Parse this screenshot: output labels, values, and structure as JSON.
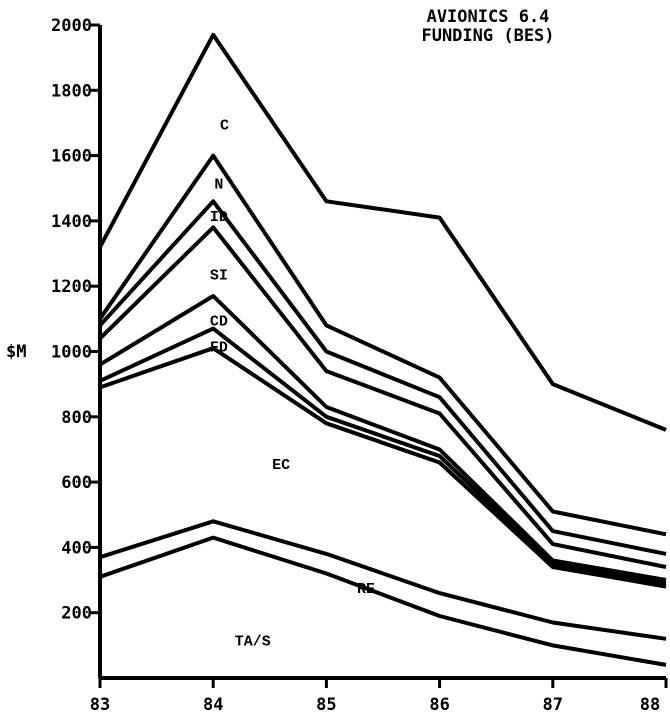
{
  "chart_data": {
    "type": "area",
    "title": [
      "AVIONICS 6.4",
      "FUNDING (BES)"
    ],
    "ylabel": "$M",
    "xlabel": "",
    "x": [
      "83",
      "84",
      "85",
      "86",
      "87",
      "88"
    ],
    "ylim": [
      0,
      2000
    ],
    "yticks": [
      "2000",
      "1800",
      "1600",
      "1400",
      "1200",
      "1000",
      "800",
      "600",
      "400",
      "200"
    ],
    "stacked": true,
    "series": [
      {
        "name": "TA/S",
        "values": [
          310,
          430,
          320,
          190,
          100,
          40
        ]
      },
      {
        "name": "RE",
        "values": [
          370,
          480,
          380,
          260,
          170,
          120
        ]
      },
      {
        "name": "EC",
        "values": [
          890,
          1010,
          780,
          660,
          340,
          280
        ]
      },
      {
        "name": "FD",
        "values": [
          910,
          1070,
          800,
          680,
          350,
          290
        ]
      },
      {
        "name": "CD",
        "values": [
          960,
          1170,
          830,
          700,
          360,
          300
        ]
      },
      {
        "name": "SI",
        "values": [
          1040,
          1380,
          940,
          810,
          410,
          340
        ]
      },
      {
        "name": "ID",
        "values": [
          1080,
          1460,
          1000,
          860,
          450,
          380
        ]
      },
      {
        "name": "N",
        "values": [
          1100,
          1600,
          1080,
          920,
          510,
          440
        ]
      },
      {
        "name": "C",
        "values": [
          1320,
          1970,
          1460,
          1410,
          900,
          760
        ]
      }
    ],
    "band_labels": [
      {
        "text": "C",
        "x": 84.1,
        "y": 1680
      },
      {
        "text": "N",
        "x": 84.05,
        "y": 1500
      },
      {
        "text": "ID",
        "x": 84.05,
        "y": 1400
      },
      {
        "text": "SI",
        "x": 84.05,
        "y": 1220
      },
      {
        "text": "CD",
        "x": 84.05,
        "y": 1080
      },
      {
        "text": "FD",
        "x": 84.05,
        "y": 1000
      },
      {
        "text": "EC",
        "x": 84.6,
        "y": 640
      },
      {
        "text": "RE",
        "x": 85.35,
        "y": 260
      },
      {
        "text": "TA/S",
        "x": 84.35,
        "y": 100
      }
    ]
  }
}
